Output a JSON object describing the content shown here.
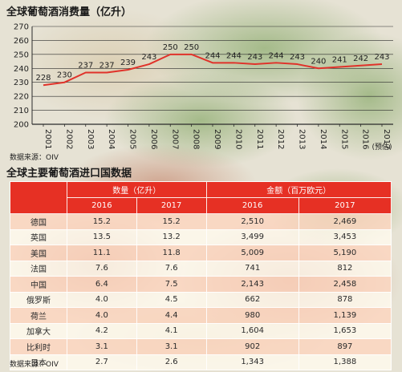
{
  "chart_title": "全球葡萄酒消费量（亿升）",
  "source_label": "数据来源：OIV",
  "chart_data": {
    "type": "line",
    "title": "全球葡萄酒消费量（亿升）",
    "categories": [
      "2001",
      "2002",
      "2003",
      "2004",
      "2005",
      "2006",
      "2007",
      "2008",
      "2009",
      "2010",
      "2011",
      "2012",
      "2013",
      "2014",
      "2015",
      "2016",
      "2017"
    ],
    "category_note": "(预估)",
    "values": [
      228,
      230,
      237,
      237,
      239,
      243,
      250,
      250,
      244,
      244,
      243,
      244,
      243,
      240,
      241,
      242,
      243
    ],
    "ylim": [
      200,
      270
    ],
    "yticks": [
      200,
      210,
      220,
      230,
      240,
      250,
      260,
      270
    ],
    "grid": "horizontal",
    "line_color": "#e0322a"
  },
  "table": {
    "title": "全球主要葡萄酒进口国数据",
    "group_headers": [
      "数量（亿升）",
      "金额（百万欧元）"
    ],
    "sub_headers": [
      "2016",
      "2017",
      "2016",
      "2017"
    ],
    "rows": [
      {
        "country": "德国",
        "q2016": "15.2",
        "q2017": "15.2",
        "v2016": "2,510",
        "v2017": "2,469"
      },
      {
        "country": "英国",
        "q2016": "13.5",
        "q2017": "13.2",
        "v2016": "3,499",
        "v2017": "3,453"
      },
      {
        "country": "美国",
        "q2016": "11.1",
        "q2017": "11.8",
        "v2016": "5,009",
        "v2017": "5,190"
      },
      {
        "country": "法国",
        "q2016": "7.6",
        "q2017": "7.6",
        "v2016": "741",
        "v2017": "812"
      },
      {
        "country": "中国",
        "q2016": "6.4",
        "q2017": "7.5",
        "v2016": "2,143",
        "v2017": "2,458"
      },
      {
        "country": "俄罗斯",
        "q2016": "4.0",
        "q2017": "4.5",
        "v2016": "662",
        "v2017": "878"
      },
      {
        "country": "荷兰",
        "q2016": "4.0",
        "q2017": "4.4",
        "v2016": "980",
        "v2017": "1,139"
      },
      {
        "country": "加拿大",
        "q2016": "4.2",
        "q2017": "4.1",
        "v2016": "1,604",
        "v2017": "1,653"
      },
      {
        "country": "比利时",
        "q2016": "3.1",
        "q2017": "3.1",
        "v2016": "902",
        "v2017": "897"
      },
      {
        "country": "日本",
        "q2016": "2.7",
        "q2017": "2.6",
        "v2016": "1,343",
        "v2017": "1,388"
      }
    ]
  }
}
